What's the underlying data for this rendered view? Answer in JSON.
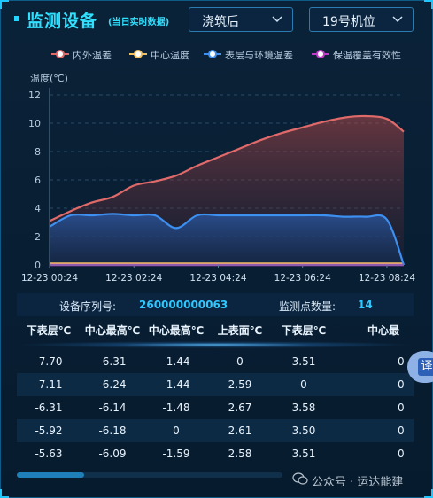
{
  "header": {
    "title": "监测设备",
    "subtitle": "(当日实时数据)",
    "select_stage": "浇筑后",
    "select_position": "19号机位"
  },
  "colors": {
    "accent": "#2fe0ff",
    "series_inner_outer": "#e06a6a",
    "series_center": "#f0c060",
    "series_surface_env": "#3d8ff0",
    "series_insulation": "#c03cc8"
  },
  "chart_data": {
    "type": "area",
    "ylabel": "温度(℃)",
    "ylim": [
      0,
      12
    ],
    "yticks": [
      "0",
      "2",
      "4",
      "6",
      "8",
      "10",
      "12"
    ],
    "xtick_labels": [
      "12-23 00:24",
      "12-23 02:24",
      "12-23 04:24",
      "12-23 06:24",
      "12-23 08:24"
    ],
    "grid": true,
    "legend_position": "top",
    "x_hours": [
      0,
      0.5,
      1,
      1.5,
      2,
      2.5,
      3,
      3.5,
      4,
      4.5,
      5,
      5.5,
      6,
      6.5,
      7,
      7.5,
      8,
      8.4
    ],
    "series": [
      {
        "name": "内外温差",
        "color": "#e06a6a",
        "values": [
          3.1,
          3.8,
          4.4,
          4.8,
          5.6,
          5.9,
          6.3,
          7.0,
          7.6,
          8.2,
          8.8,
          9.3,
          9.7,
          10.1,
          10.4,
          10.5,
          10.3,
          9.4
        ]
      },
      {
        "name": "中心温度",
        "color": "#f0c060",
        "values": [
          0.1,
          0.1,
          0.1,
          0.1,
          0.1,
          0.1,
          0.1,
          0.1,
          0.1,
          0.1,
          0.1,
          0.1,
          0.1,
          0.1,
          0.1,
          0.1,
          0.1,
          0.1
        ]
      },
      {
        "name": "表层与环境温差",
        "color": "#3d8ff0",
        "values": [
          2.7,
          3.5,
          3.5,
          3.6,
          3.5,
          3.5,
          2.6,
          3.5,
          3.5,
          3.5,
          3.5,
          3.5,
          3.5,
          3.5,
          3.4,
          3.4,
          3.2,
          0.0
        ]
      },
      {
        "name": "保温覆盖有效性",
        "color": "#c03cc8",
        "values": [
          0,
          0,
          0,
          0,
          0,
          0,
          0,
          0,
          0,
          0,
          0,
          0,
          0,
          0,
          0,
          0,
          0,
          0
        ]
      }
    ]
  },
  "info": {
    "serial_label": "设备序列号:",
    "serial_value": "260000000063",
    "points_label": "监测点数量:",
    "points_value": "14"
  },
  "table": {
    "headers": [
      "下表层℃",
      "中心最高℃",
      "中心最高℃",
      "上表面℃",
      "下表层℃",
      "中心最"
    ],
    "rows": [
      [
        "-7.70",
        "-6.31",
        "-1.44",
        "0",
        "3.51",
        "0"
      ],
      [
        "-7.11",
        "-6.24",
        "-1.44",
        "2.59",
        "0",
        "0"
      ],
      [
        "-6.31",
        "-6.14",
        "-1.48",
        "2.67",
        "3.58",
        "0"
      ],
      [
        "-5.92",
        "-6.18",
        "0",
        "2.61",
        "3.50",
        "0"
      ],
      [
        "-5.63",
        "-6.09",
        "-1.59",
        "2.58",
        "3.51",
        "0"
      ]
    ]
  },
  "scroll_progress": 0.25,
  "float_button_label": "译",
  "watermark": "公众号 · 运达能建"
}
